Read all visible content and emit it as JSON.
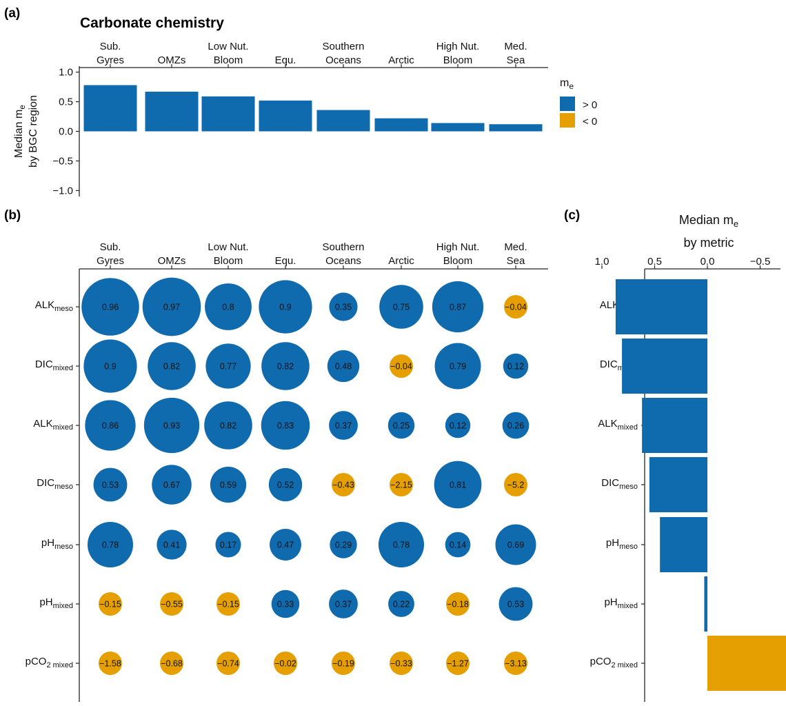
{
  "panel_labels": {
    "a": "(a)",
    "b": "(b)",
    "c": "(c)"
  },
  "colors": {
    "positive": "#0f6aae",
    "negative": "#e59f00",
    "axis": "#222222"
  },
  "legend": {
    "title_main": "m",
    "title_sub": "e",
    "positive_label": "> 0",
    "negative_label": "< 0"
  },
  "chart_data": [
    {
      "id": "a",
      "type": "bar",
      "title": "Carbonate chemistry",
      "ylabel_lines": [
        "Median m|e",
        "by BGC region"
      ],
      "categories": [
        [
          "Sub.",
          "Gyres"
        ],
        [
          "OMZs"
        ],
        [
          "Low Nut.",
          "Bloom"
        ],
        [
          "Equ."
        ],
        [
          "Southern",
          "Oceans"
        ],
        [
          "Arctic"
        ],
        [
          "High Nut.",
          "Bloom"
        ],
        [
          "Med.",
          "Sea"
        ]
      ],
      "values": [
        0.78,
        0.67,
        0.59,
        0.52,
        0.36,
        0.22,
        0.14,
        0.12
      ],
      "ylim": [
        -1.1,
        1.1
      ],
      "yticks": [
        "1.0",
        "0.5",
        "0.0",
        "-0.5",
        "-1.0"
      ],
      "ytick_values": [
        1.0,
        0.5,
        0.0,
        -0.5,
        -1.0
      ]
    },
    {
      "id": "b",
      "type": "table",
      "columns": [
        [
          "Sub.",
          "Gyres"
        ],
        [
          "OMZs"
        ],
        [
          "Low Nut.",
          "Bloom"
        ],
        [
          "Equ."
        ],
        [
          "Southern",
          "Oceans"
        ],
        [
          "Arctic"
        ],
        [
          "High Nut.",
          "Bloom"
        ],
        [
          "Med.",
          "Sea"
        ]
      ],
      "rows": [
        {
          "base": "ALK",
          "sub": "meso",
          "values": [
            "0.96",
            "0.97",
            "0.8",
            "0.9",
            "0.35",
            "0.75",
            "0.87",
            "-0.04"
          ]
        },
        {
          "base": "DIC",
          "sub": "mixed",
          "values": [
            "0.9",
            "0.82",
            "0.77",
            "0.82",
            "0.48",
            "-0.04",
            "0.79",
            "0.12"
          ]
        },
        {
          "base": "ALK",
          "sub": "mixed",
          "values": [
            "0.86",
            "0.93",
            "0.82",
            "0.83",
            "0.37",
            "0.25",
            "0.12",
            "0.26"
          ]
        },
        {
          "base": "DIC",
          "sub": "meso",
          "values": [
            "0.53",
            "0.67",
            "0.59",
            "0.52",
            "-0.43",
            "-2.15",
            "0.81",
            "-5.2"
          ]
        },
        {
          "base": "pH",
          "sub": "meso",
          "values": [
            "0.78",
            "0.41",
            "0.17",
            "0.47",
            "0.29",
            "0.78",
            "0.14",
            "0.69"
          ]
        },
        {
          "base": "pH",
          "sub": "mixed",
          "values": [
            "-0.15",
            "-0.55",
            "-0.15",
            "0.33",
            "0.37",
            "0.22",
            "-0.18",
            "0.53"
          ]
        },
        {
          "base": "pCO",
          "sub": "2 mixed",
          "values": [
            "-1.58",
            "-0.68",
            "-0.74",
            "-0.02",
            "-0.19",
            "-0.33",
            "-1.27",
            "-3.13"
          ]
        }
      ]
    },
    {
      "id": "c",
      "type": "bar",
      "orientation": "horizontal",
      "title_lines": [
        "Median m|e",
        "by metric"
      ],
      "categories": [
        {
          "base": "ALK",
          "sub": "meso"
        },
        {
          "base": "DIC",
          "sub": "mixed"
        },
        {
          "base": "ALK",
          "sub": "mixed"
        },
        {
          "base": "DIC",
          "sub": "meso"
        },
        {
          "base": "pH",
          "sub": "meso"
        },
        {
          "base": "pH",
          "sub": "mixed"
        },
        {
          "base": "pCO",
          "sub": "2 mixed"
        }
      ],
      "values": [
        0.87,
        0.81,
        0.62,
        0.55,
        0.45,
        0.03,
        -0.75
      ],
      "xlim": [
        1.1,
        -1.1
      ],
      "xticks": [
        "1.0",
        "0.5",
        "0.0",
        "-0.5",
        "-1.0"
      ],
      "xtick_values": [
        1.0,
        0.5,
        0.0,
        -0.5,
        -1.0
      ]
    }
  ]
}
